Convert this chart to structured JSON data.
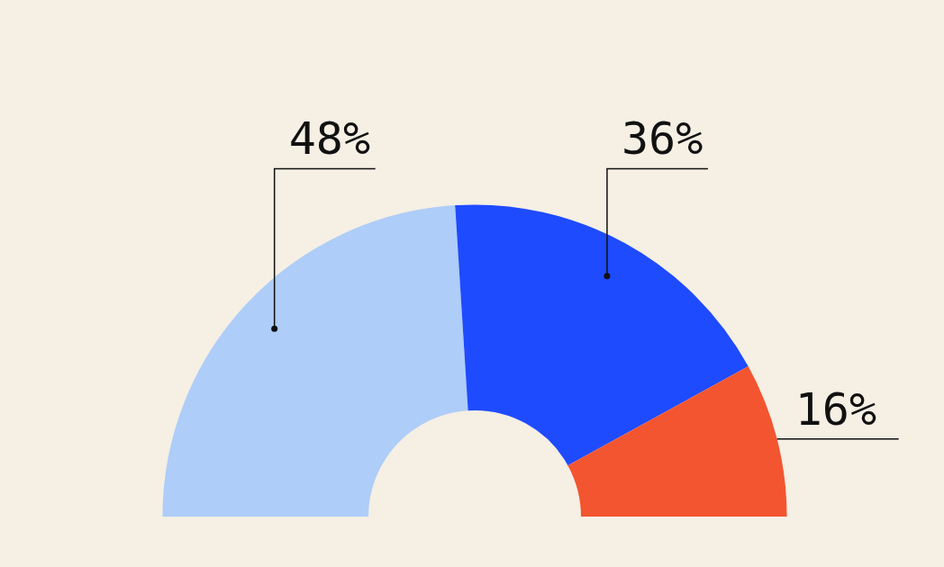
{
  "chart_data": {
    "type": "donut",
    "categories": [
      null,
      null,
      null
    ],
    "values": [
      48,
      36,
      16
    ],
    "colors": [
      "#aecdf8",
      "#1f4bff",
      "#f35530"
    ],
    "value_labels": [
      "48%",
      "36%",
      "16%"
    ],
    "legend": false
  }
}
